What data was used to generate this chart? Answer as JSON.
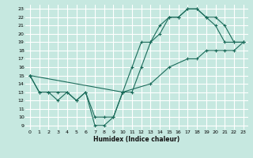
{
  "xlabel": "Humidex (Indice chaleur)",
  "xlim": [
    -0.5,
    23.5
  ],
  "ylim": [
    8.5,
    23.5
  ],
  "xticks": [
    0,
    1,
    2,
    3,
    4,
    5,
    6,
    7,
    8,
    9,
    10,
    11,
    12,
    13,
    14,
    15,
    16,
    17,
    18,
    19,
    20,
    21,
    22,
    23
  ],
  "yticks": [
    9,
    10,
    11,
    12,
    13,
    14,
    15,
    16,
    17,
    18,
    19,
    20,
    21,
    22,
    23
  ],
  "bg_color": "#c6e8e0",
  "line_color": "#1a6b5a",
  "grid_color": "#ffffff",
  "line1": {
    "x": [
      0,
      1,
      2,
      3,
      4,
      5,
      6,
      7,
      8,
      9,
      10,
      11,
      12,
      13,
      14,
      15,
      16,
      17,
      18,
      19,
      20,
      21,
      22,
      23
    ],
    "y": [
      15,
      13,
      13,
      13,
      13,
      12,
      13,
      9,
      9,
      10,
      13,
      16,
      19,
      19,
      20,
      22,
      22,
      23,
      23,
      22,
      22,
      21,
      19,
      19
    ]
  },
  "line2": {
    "x": [
      0,
      1,
      2,
      3,
      4,
      5,
      6,
      7,
      8,
      9,
      10,
      11,
      12,
      13,
      14,
      15,
      16,
      17,
      18,
      19,
      20,
      21,
      22,
      23
    ],
    "y": [
      15,
      13,
      13,
      12,
      13,
      12,
      13,
      10,
      10,
      10,
      13,
      13,
      16,
      19,
      21,
      22,
      22,
      23,
      23,
      22,
      21,
      19,
      19,
      19
    ]
  },
  "line3": {
    "x": [
      0,
      10,
      13,
      15,
      17,
      18,
      19,
      20,
      21,
      22,
      23
    ],
    "y": [
      15,
      13,
      14,
      16,
      17,
      17,
      18,
      18,
      18,
      18,
      19
    ]
  }
}
